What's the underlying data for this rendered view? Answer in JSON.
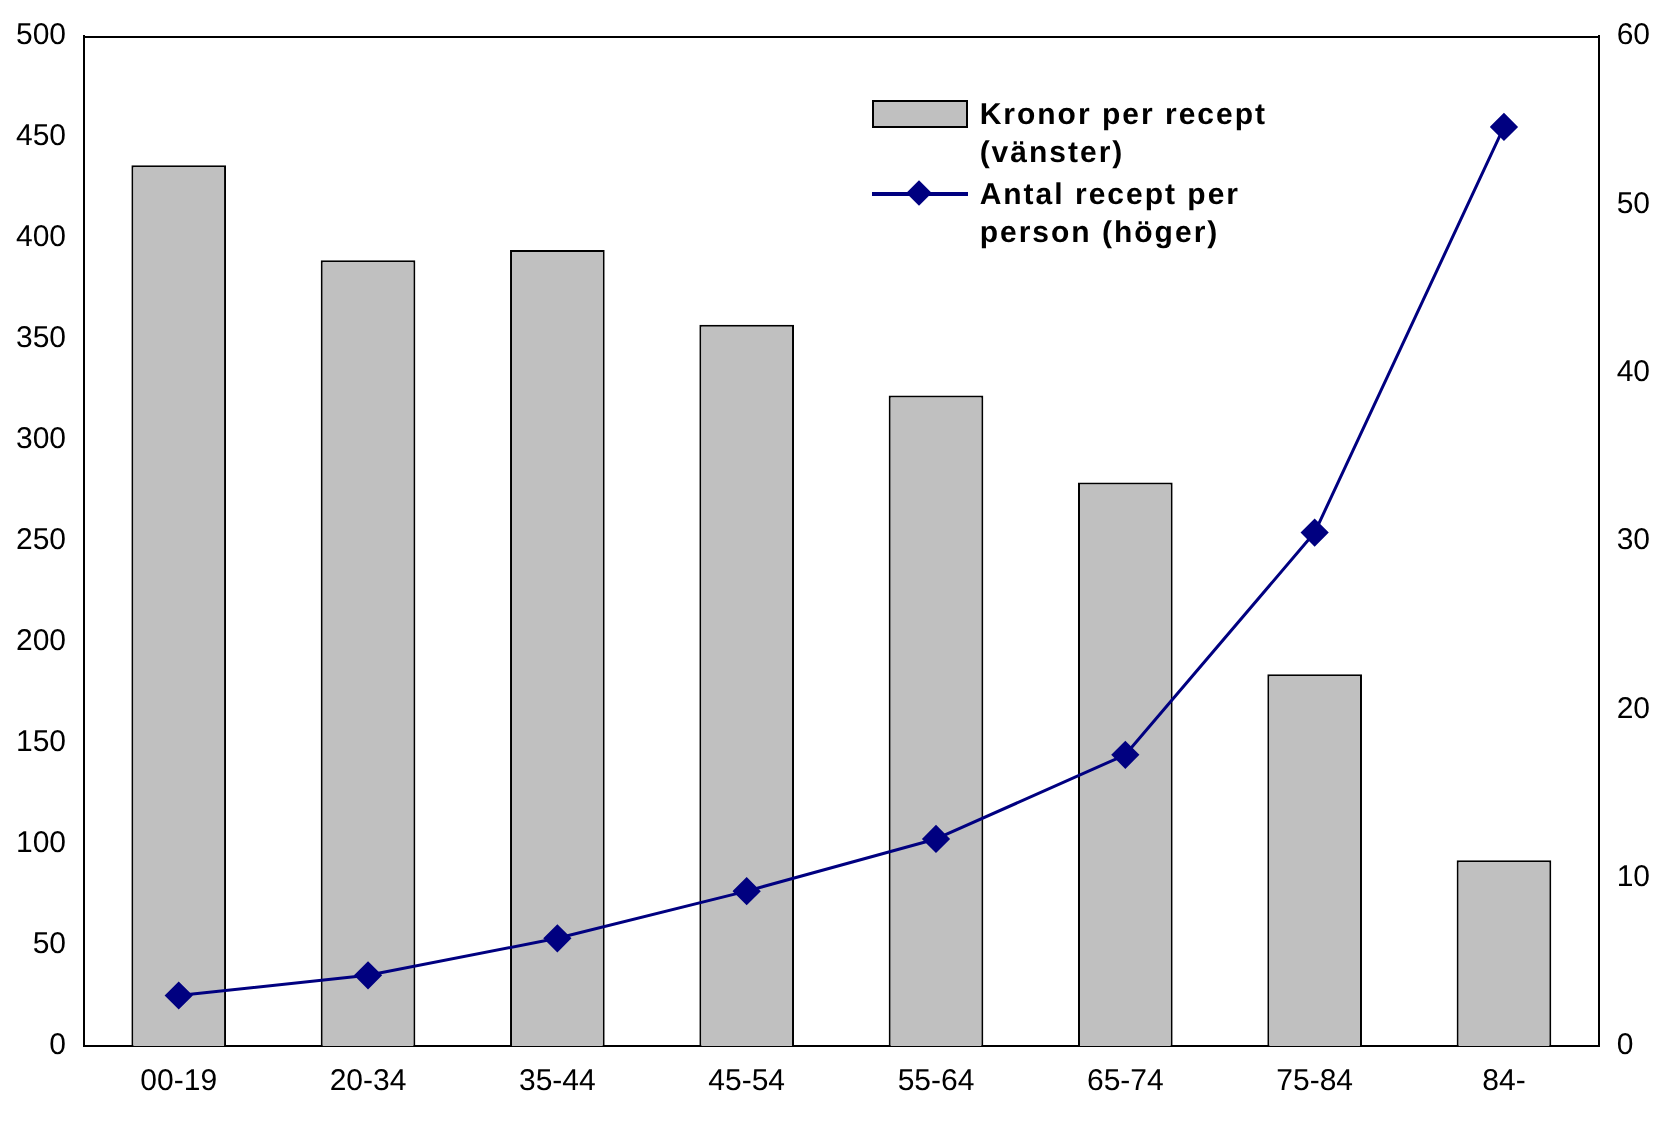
{
  "chart_data": {
    "type": "bar",
    "categories": [
      "00-19",
      "20-34",
      "35-44",
      "45-54",
      "55-64",
      "65-74",
      "75-84",
      "84-"
    ],
    "series": [
      {
        "name": "Kronor per recept (vänster)",
        "color": "#c0c0c0",
        "values": [
          436,
          389,
          394,
          357,
          322,
          279,
          184,
          92
        ]
      },
      {
        "name": "Antal recept per person (höger)",
        "type": "line",
        "axis": "y2",
        "color": "#000080",
        "values": [
          3.0,
          4.2,
          6.4,
          9.2,
          12.3,
          17.3,
          30.5,
          54.6
        ]
      }
    ],
    "ylim": [
      0,
      500
    ],
    "yticks": [
      0,
      50,
      100,
      150,
      200,
      250,
      300,
      350,
      400,
      450,
      500
    ],
    "y2lim": [
      0,
      60
    ],
    "y2ticks": [
      0,
      10,
      20,
      30,
      40,
      50,
      60
    ],
    "grid": false,
    "legend": "top right",
    "marker": "diamond",
    "line_style": "solid"
  }
}
